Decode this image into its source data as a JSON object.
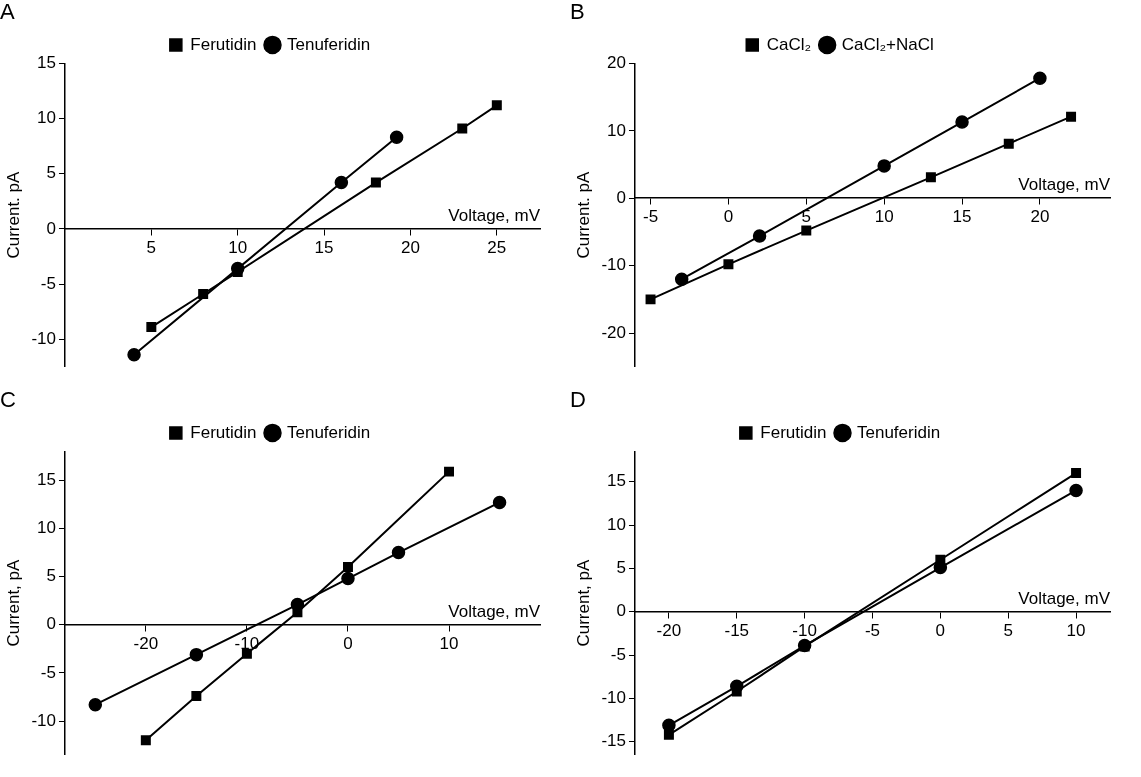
{
  "chart_data": [
    {
      "type": "line",
      "title": "A",
      "xlabel": "Voltage, mV",
      "ylabel": "Current. pA",
      "xlim": [
        0,
        27.5
      ],
      "xticks": [
        5,
        10,
        15,
        20,
        25
      ],
      "ylim": [
        -12.5,
        15
      ],
      "yticks": [
        -10,
        -5,
        0,
        5,
        10,
        15
      ],
      "legend": "top",
      "grid": false,
      "series": [
        {
          "name": "Ferutidin",
          "color": "#000000",
          "marker": "square",
          "x": [
            5,
            8,
            10,
            18,
            23,
            25
          ],
          "values": [
            -8.9,
            -5.9,
            -3.9,
            4.2,
            9.1,
            11.2
          ]
        },
        {
          "name": "Tenuferidin",
          "color": "#000000",
          "marker": "circle",
          "x": [
            4,
            10,
            16,
            19.2
          ],
          "values": [
            -11.4,
            -3.6,
            4.2,
            8.3
          ]
        }
      ]
    },
    {
      "type": "line",
      "title": "B",
      "xlabel": "Voltage, mV",
      "ylabel": "Current. pA",
      "xlim": [
        -6,
        24.5
      ],
      "xticks": [
        -5,
        0,
        5,
        10,
        15,
        20
      ],
      "ylim": [
        -25,
        20
      ],
      "yticks": [
        -20,
        -10,
        0,
        10,
        20
      ],
      "legend": "top",
      "grid": false,
      "series": [
        {
          "name": "CaCl₂",
          "color": "#000000",
          "marker": "square",
          "x": [
            -5,
            0,
            5,
            13,
            18,
            22
          ],
          "values": [
            -15,
            -9.8,
            -4.8,
            3.1,
            8.1,
            12.1
          ]
        },
        {
          "name": "CaCl₂+NaCl",
          "color": "#000000",
          "marker": "circle",
          "x": [
            -3,
            2,
            10,
            15,
            20
          ],
          "values": [
            -12,
            -5.6,
            4.8,
            11.3,
            17.8
          ]
        }
      ]
    },
    {
      "type": "line",
      "title": "C",
      "xlabel": "Voltage, mV",
      "ylabel": "Current, pA",
      "xlim": [
        -28,
        19
      ],
      "xticks": [
        -20,
        -10,
        0,
        10
      ],
      "ylim": [
        -13.5,
        18
      ],
      "yticks": [
        -10,
        -5,
        0,
        5,
        10,
        15
      ],
      "legend": "top",
      "grid": false,
      "series": [
        {
          "name": "Ferutidin",
          "color": "#000000",
          "marker": "square",
          "x": [
            -20,
            -15,
            -10,
            -5,
            0,
            10
          ],
          "values": [
            -12,
            -7.4,
            -3,
            1.3,
            6,
            15.9
          ]
        },
        {
          "name": "Tenuferidin",
          "color": "#000000",
          "marker": "circle",
          "x": [
            -25,
            -15,
            -5,
            0,
            5,
            15
          ],
          "values": [
            -8.3,
            -3.1,
            2.1,
            4.8,
            7.5,
            12.7
          ]
        }
      ]
    },
    {
      "type": "line",
      "title": "D",
      "xlabel": "Voltage, mV",
      "ylabel": "Current, pA",
      "xlim": [
        -22.5,
        12.5
      ],
      "xticks": [
        -20,
        -15,
        -10,
        -5,
        0,
        5,
        10
      ],
      "ylim": [
        -16.5,
        18.5
      ],
      "yticks": [
        -15,
        -10,
        -5,
        0,
        5,
        10,
        15
      ],
      "legend": "top",
      "grid": false,
      "series": [
        {
          "name": "Ferutidin",
          "color": "#000000",
          "marker": "square",
          "x": [
            -20,
            -15,
            -10,
            0,
            10
          ],
          "values": [
            -14.2,
            -9.2,
            -4,
            6,
            16
          ]
        },
        {
          "name": "Tenuferidin",
          "color": "#000000",
          "marker": "circle",
          "x": [
            -20,
            -15,
            -10,
            0,
            10
          ],
          "values": [
            -13.1,
            -8.6,
            -3.9,
            5.1,
            14
          ]
        }
      ]
    }
  ]
}
